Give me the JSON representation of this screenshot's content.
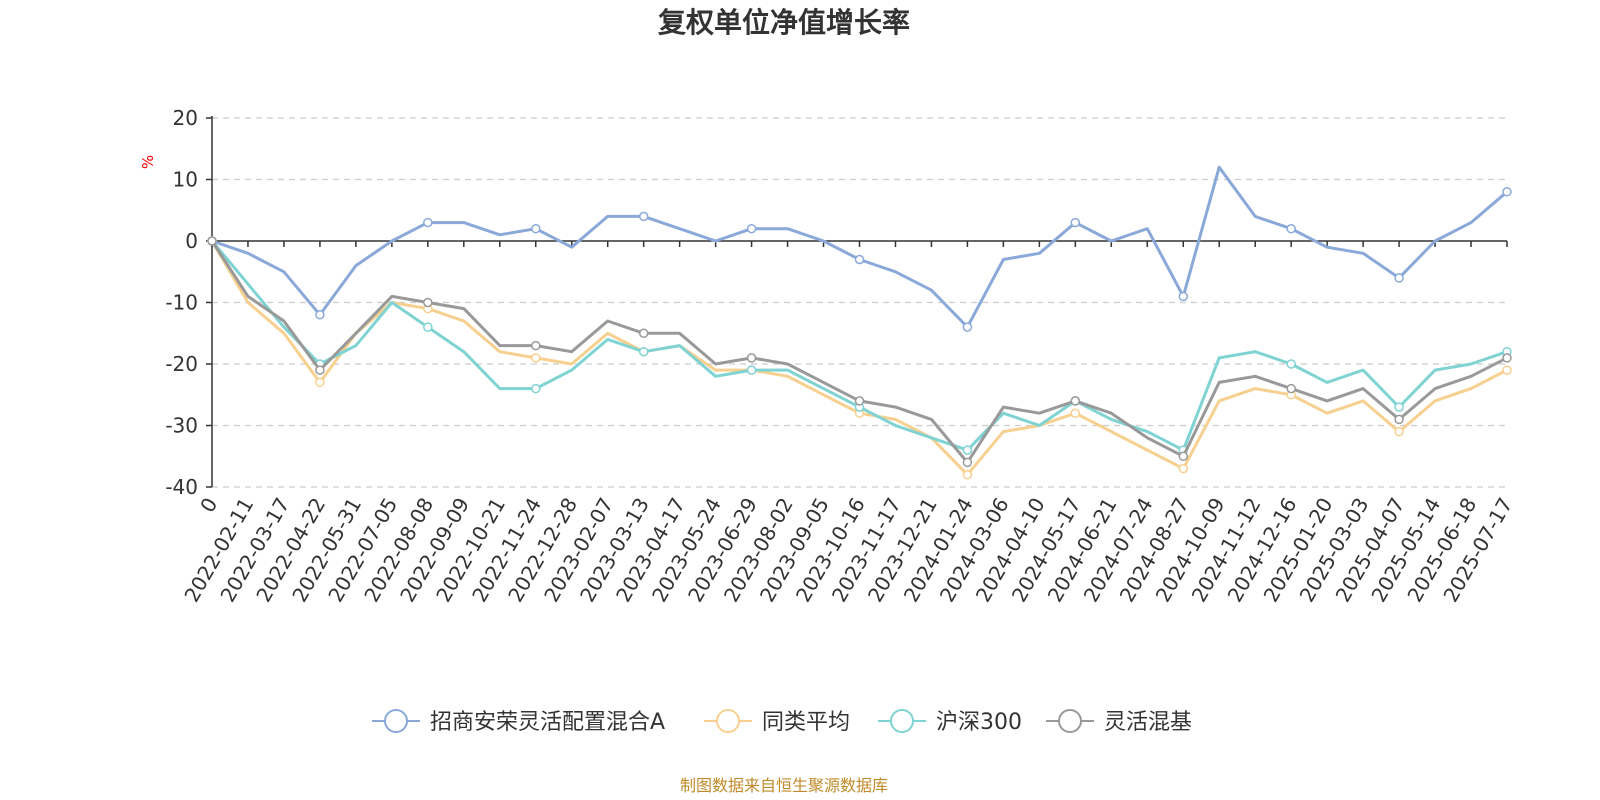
{
  "chart_data": {
    "type": "line",
    "title": "复权单位净值增长率",
    "ylabel": "%",
    "ylim": [
      -40,
      20
    ],
    "yticks": [
      20,
      10,
      0,
      -10,
      -20,
      -30,
      -40
    ],
    "grid": true,
    "legend_position": "bottom",
    "source": "制图数据来自恒生聚源数据库",
    "x_tick_labels": [
      "0",
      "2022-02-11",
      "2022-03-17",
      "2022-04-22",
      "2022-05-31",
      "2022-07-05",
      "2022-08-08",
      "2022-09-09",
      "2022-10-21",
      "2022-11-24",
      "2022-12-28",
      "2023-02-07",
      "2023-03-13",
      "2023-04-17",
      "2023-05-24",
      "2023-06-29",
      "2023-08-02",
      "2023-09-05",
      "2023-10-16",
      "2023-11-17",
      "2023-12-21",
      "2024-01-24",
      "2024-03-06",
      "2024-04-10",
      "2024-05-17",
      "2024-06-21",
      "2024-07-24",
      "2024-08-27",
      "2024-10-09",
      "2024-11-12",
      "2024-12-16",
      "2025-01-20",
      "2025-03-03",
      "2025-04-07",
      "2025-05-14",
      "2025-06-18",
      "2025-07-17"
    ],
    "series": [
      {
        "name": "招商安荣灵活配置混合A",
        "color": "#8aa9d9",
        "values": [
          0,
          -2,
          -5,
          -12,
          -4,
          0,
          3,
          3,
          1,
          2,
          -1,
          4,
          4,
          2,
          0,
          2,
          2,
          0,
          -3,
          -5,
          -8,
          -14,
          -3,
          -2,
          3,
          0,
          2,
          -9,
          12,
          4,
          2,
          -1,
          -2,
          -6,
          0,
          3,
          8
        ]
      },
      {
        "name": "同类平均",
        "color": "#f7d08f",
        "values": [
          0,
          -10,
          -15,
          -23,
          -15,
          -10,
          -11,
          -13,
          -18,
          -19,
          -20,
          -15,
          -18,
          -17,
          -21,
          -21,
          -22,
          -25,
          -28,
          -29,
          -32,
          -38,
          -31,
          -30,
          -28,
          -31,
          -34,
          -37,
          -26,
          -24,
          -25,
          -28,
          -26,
          -31,
          -26,
          -24,
          -21
        ]
      },
      {
        "name": "沪深300",
        "color": "#7fd3d3",
        "values": [
          0,
          -7,
          -14,
          -20,
          -17,
          -10,
          -14,
          -18,
          -24,
          -24,
          -21,
          -16,
          -18,
          -17,
          -22,
          -21,
          -21,
          -24,
          -27,
          -30,
          -32,
          -34,
          -28,
          -30,
          -26,
          -29,
          -31,
          -34,
          -19,
          -18,
          -20,
          -23,
          -21,
          -27,
          -21,
          -20,
          -18
        ]
      },
      {
        "name": "灵活混基",
        "color": "#999999",
        "values": [
          0,
          -9,
          -13,
          -21,
          -15,
          -9,
          -10,
          -11,
          -17,
          -17,
          -18,
          -13,
          -15,
          -15,
          -20,
          -19,
          -20,
          -23,
          -26,
          -27,
          -29,
          -36,
          -27,
          -28,
          -26,
          -28,
          -32,
          -35,
          -23,
          -22,
          -24,
          -26,
          -24,
          -29,
          -24,
          -22,
          -19
        ]
      }
    ]
  }
}
